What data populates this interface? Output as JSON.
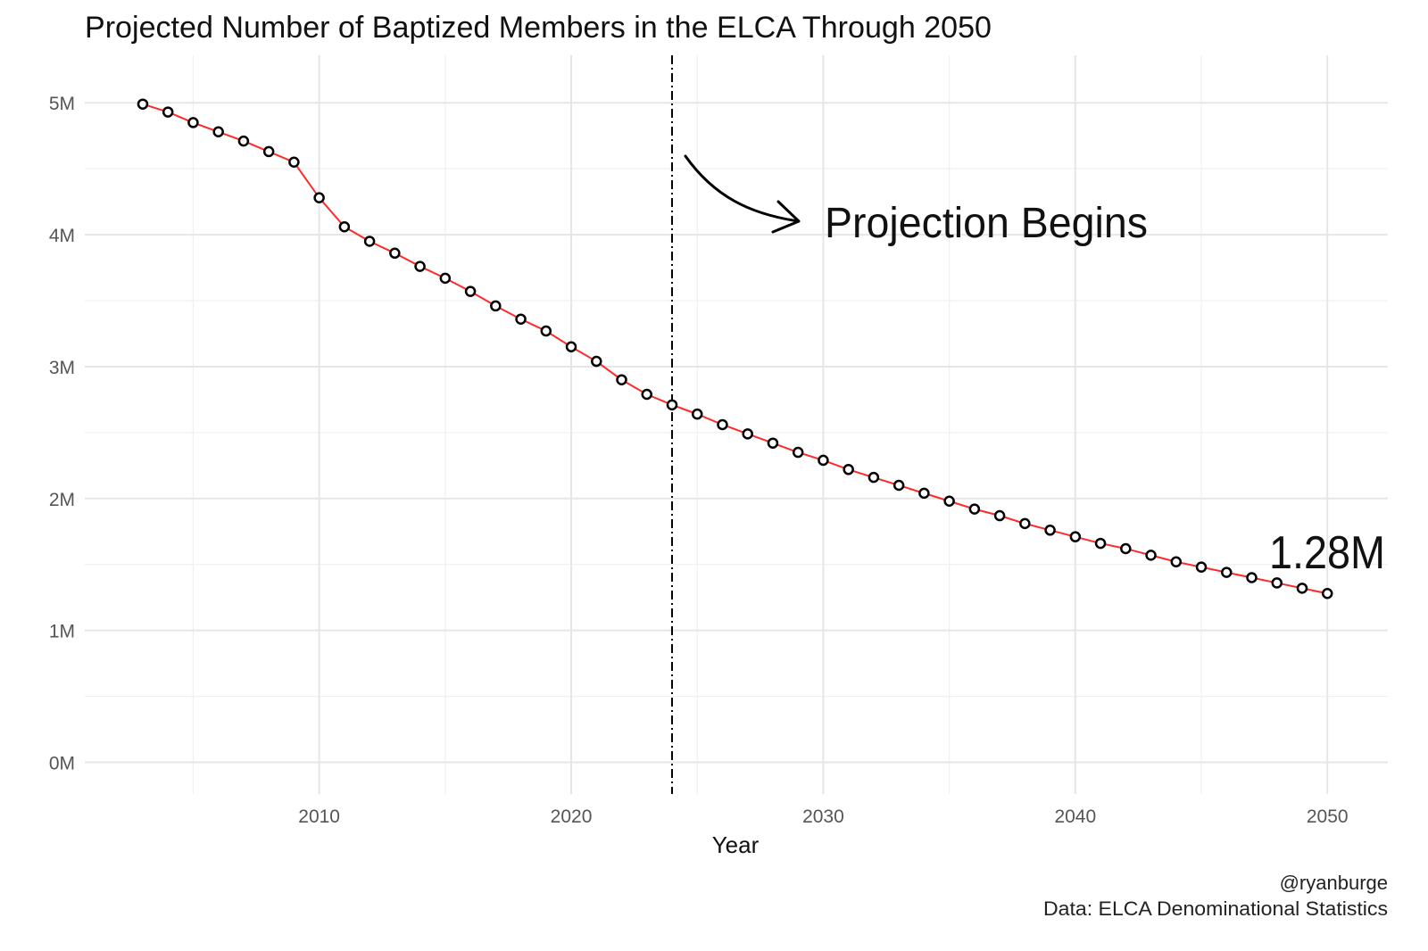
{
  "chart_data": {
    "type": "line",
    "title": "Projected Number of Baptized Members in the ELCA Through 2050",
    "xlabel": "Year",
    "ylabel": "",
    "caption": [
      "@ryanburge",
      "Data: ELCA Denominational Statistics"
    ],
    "xlim": [
      2000.7,
      2052.4
    ],
    "ylim": [
      -0.24,
      5.36
    ],
    "x_ticks": [
      2010,
      2020,
      2030,
      2040,
      2050
    ],
    "x_tick_labels": [
      "2010",
      "2020",
      "2030",
      "2040",
      "2050"
    ],
    "y_ticks": [
      0,
      1,
      2,
      3,
      4,
      5
    ],
    "y_tick_labels": [
      "0M",
      "1M",
      "2M",
      "3M",
      "4M",
      "5M"
    ],
    "grid": true,
    "line_color": "#ff2a2a",
    "marker": "hollow circle, black outline",
    "projection_start": 2024,
    "annotations": {
      "projection": "Projection Begins",
      "final_value": "1.28M"
    },
    "series": [
      {
        "x": [
          2003,
          2004,
          2005,
          2006,
          2007,
          2008,
          2009,
          2010,
          2011,
          2012,
          2013,
          2014,
          2015,
          2016,
          2017,
          2018,
          2019,
          2020,
          2021,
          2022,
          2023,
          2024,
          2025,
          2026,
          2027,
          2028,
          2029,
          2030,
          2031,
          2032,
          2033,
          2034,
          2035,
          2036,
          2037,
          2038,
          2039,
          2040,
          2041,
          2042,
          2043,
          2044,
          2045,
          2046,
          2047,
          2048,
          2049,
          2050
        ],
        "values": [
          4.99,
          4.93,
          4.85,
          4.78,
          4.71,
          4.63,
          4.55,
          4.28,
          4.06,
          3.95,
          3.86,
          3.76,
          3.67,
          3.57,
          3.46,
          3.36,
          3.27,
          3.15,
          3.04,
          2.9,
          2.79,
          2.71,
          2.64,
          2.56,
          2.49,
          2.42,
          2.35,
          2.29,
          2.22,
          2.16,
          2.1,
          2.04,
          1.98,
          1.92,
          1.87,
          1.81,
          1.76,
          1.71,
          1.66,
          1.62,
          1.57,
          1.52,
          1.48,
          1.44,
          1.4,
          1.36,
          1.32,
          1.28
        ],
        "unit": "millions"
      }
    ]
  }
}
